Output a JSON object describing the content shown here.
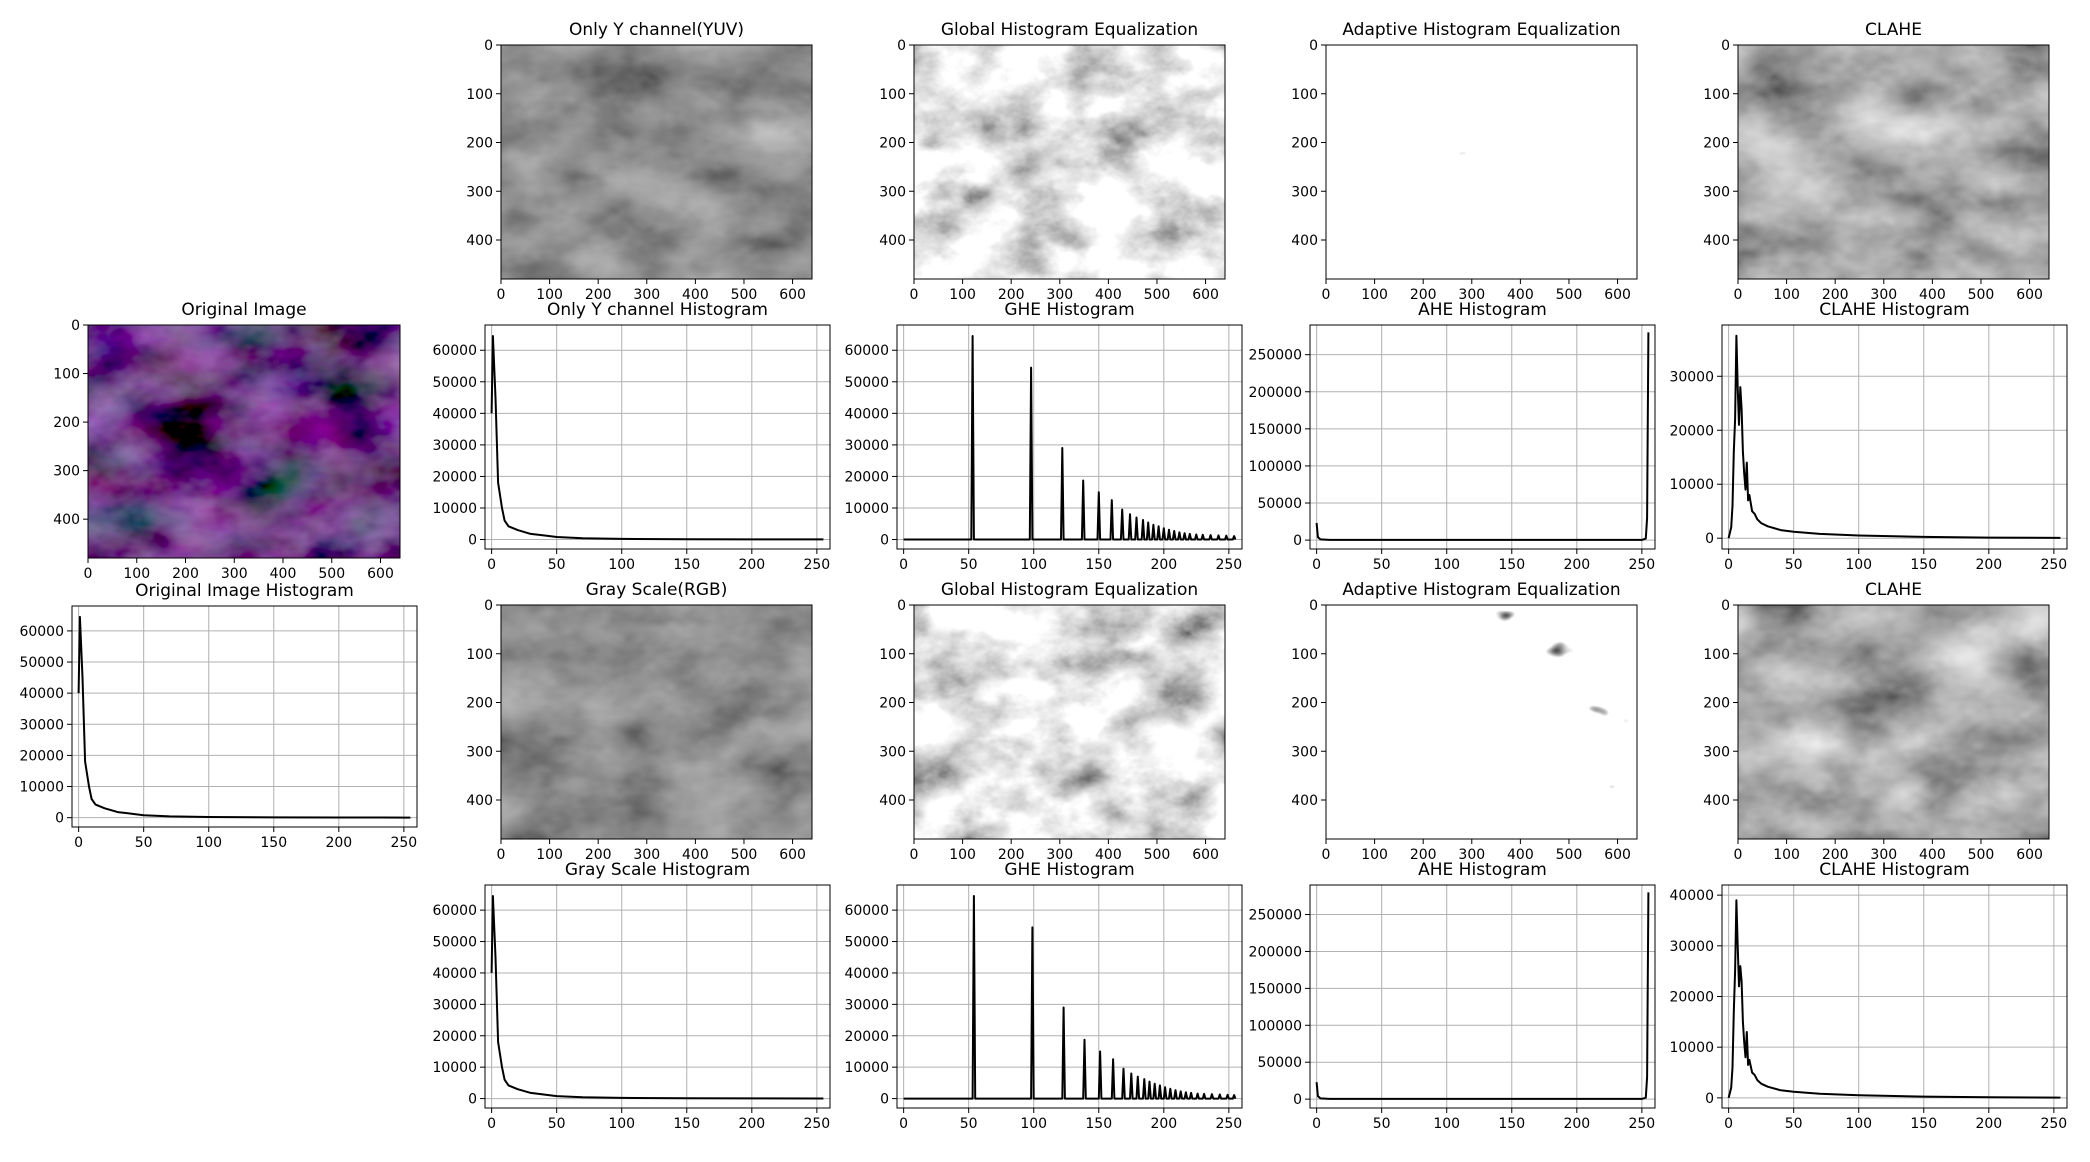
{
  "figure": {
    "background": "#ffffff",
    "line_color": "#000000",
    "grid_color": "#b0b0b0"
  },
  "chart_data": [
    {
      "id": "orig_img",
      "type": "image",
      "title": "Original Image",
      "content": "color",
      "x_ticks": [
        0,
        100,
        200,
        300,
        400,
        500,
        600
      ],
      "y_ticks": [
        0,
        100,
        200,
        300,
        400
      ],
      "xlim": [
        0,
        640
      ],
      "ylim": [
        0,
        480
      ]
    },
    {
      "id": "orig_hist",
      "type": "line",
      "title": "Original Image Histogram",
      "grid": true,
      "xlim": [
        0,
        255
      ],
      "ylim": [
        -3000,
        68000
      ],
      "x_ticks": [
        0,
        50,
        100,
        150,
        200,
        250
      ],
      "y_ticks": [
        0,
        10000,
        20000,
        30000,
        40000,
        50000,
        60000
      ],
      "shape": "decay",
      "points": [
        [
          0,
          40000
        ],
        [
          1,
          64500
        ],
        [
          3,
          45000
        ],
        [
          5,
          18000
        ],
        [
          8,
          10000
        ],
        [
          10,
          6000
        ],
        [
          13,
          4200
        ],
        [
          20,
          3000
        ],
        [
          30,
          1800
        ],
        [
          40,
          1300
        ],
        [
          50,
          800
        ],
        [
          70,
          400
        ],
        [
          100,
          200
        ],
        [
          150,
          100
        ],
        [
          200,
          50
        ],
        [
          255,
          30
        ]
      ]
    },
    {
      "id": "y_img",
      "type": "image",
      "title": "Only Y channel(YUV)",
      "content": "gray",
      "x_ticks": [
        0,
        100,
        200,
        300,
        400,
        500,
        600
      ],
      "y_ticks": [
        0,
        100,
        200,
        300,
        400
      ],
      "xlim": [
        0,
        640
      ],
      "ylim": [
        0,
        480
      ]
    },
    {
      "id": "y_hist",
      "type": "line",
      "title": "Only Y channel Histogram",
      "grid": true,
      "xlim": [
        0,
        255
      ],
      "ylim": [
        -3000,
        68000
      ],
      "x_ticks": [
        0,
        50,
        100,
        150,
        200,
        250
      ],
      "y_ticks": [
        0,
        10000,
        20000,
        30000,
        40000,
        50000,
        60000
      ],
      "shape": "decay",
      "points": [
        [
          0,
          40000
        ],
        [
          1,
          64500
        ],
        [
          3,
          45000
        ],
        [
          5,
          18000
        ],
        [
          8,
          10000
        ],
        [
          10,
          6000
        ],
        [
          13,
          4200
        ],
        [
          20,
          3000
        ],
        [
          30,
          1800
        ],
        [
          40,
          1300
        ],
        [
          50,
          800
        ],
        [
          70,
          400
        ],
        [
          100,
          200
        ],
        [
          150,
          100
        ],
        [
          200,
          50
        ],
        [
          255,
          30
        ]
      ]
    },
    {
      "id": "ghe_img_1",
      "type": "image",
      "title": "Global Histogram Equalization",
      "content": "ghe",
      "x_ticks": [
        0,
        100,
        200,
        300,
        400,
        500,
        600
      ],
      "y_ticks": [
        0,
        100,
        200,
        300,
        400
      ],
      "xlim": [
        0,
        640
      ],
      "ylim": [
        0,
        480
      ]
    },
    {
      "id": "ghe_hist_1",
      "type": "line",
      "title": "GHE Histogram",
      "grid": true,
      "xlim": [
        0,
        255
      ],
      "ylim": [
        -3000,
        68000
      ],
      "x_ticks": [
        0,
        50,
        100,
        150,
        200,
        250
      ],
      "y_ticks": [
        0,
        10000,
        20000,
        30000,
        40000,
        50000,
        60000
      ],
      "shape": "spikes",
      "spikes": [
        [
          53,
          64500
        ],
        [
          98,
          54500
        ],
        [
          122,
          29000
        ],
        [
          138,
          18700
        ],
        [
          150,
          15000
        ],
        [
          160,
          12500
        ],
        [
          168,
          9500
        ],
        [
          174,
          8000
        ],
        [
          179,
          7000
        ],
        [
          184,
          6200
        ],
        [
          188,
          5400
        ],
        [
          192,
          4700
        ],
        [
          196,
          4200
        ],
        [
          200,
          3600
        ],
        [
          204,
          3100
        ],
        [
          208,
          2700
        ],
        [
          212,
          2300
        ],
        [
          216,
          2000
        ],
        [
          220,
          1800
        ],
        [
          225,
          1600
        ],
        [
          230,
          1500
        ],
        [
          236,
          1400
        ],
        [
          242,
          1300
        ],
        [
          248,
          1200
        ],
        [
          254,
          1100
        ]
      ]
    },
    {
      "id": "ahe_img_1",
      "type": "image",
      "title": "Adaptive Histogram Equalization",
      "content": "ahe",
      "x_ticks": [
        0,
        100,
        200,
        300,
        400,
        500,
        600
      ],
      "y_ticks": [
        0,
        100,
        200,
        300,
        400
      ],
      "xlim": [
        0,
        640
      ],
      "ylim": [
        0,
        480
      ]
    },
    {
      "id": "ahe_hist_1",
      "type": "line",
      "title": "AHE Histogram",
      "grid": true,
      "xlim": [
        0,
        255
      ],
      "ylim": [
        -12000,
        290000
      ],
      "x_ticks": [
        0,
        50,
        100,
        150,
        200,
        250
      ],
      "y_ticks": [
        0,
        50000,
        100000,
        150000,
        200000,
        250000
      ],
      "shape": "edge",
      "points": [
        [
          0,
          23000
        ],
        [
          1,
          4000
        ],
        [
          3,
          1000
        ],
        [
          10,
          300
        ],
        [
          250,
          300
        ],
        [
          253,
          2000
        ],
        [
          254,
          30000
        ],
        [
          255,
          280000
        ]
      ]
    },
    {
      "id": "clahe_img_1",
      "type": "image",
      "title": "CLAHE",
      "content": "clahe",
      "x_ticks": [
        0,
        100,
        200,
        300,
        400,
        500,
        600
      ],
      "y_ticks": [
        0,
        100,
        200,
        300,
        400
      ],
      "xlim": [
        0,
        640
      ],
      "ylim": [
        0,
        480
      ]
    },
    {
      "id": "clahe_hist_1",
      "type": "line",
      "title": "CLAHE Histogram",
      "grid": true,
      "xlim": [
        0,
        255
      ],
      "ylim": [
        -2000,
        39500
      ],
      "x_ticks": [
        0,
        50,
        100,
        150,
        200,
        250
      ],
      "y_ticks": [
        0,
        10000,
        20000,
        30000
      ],
      "shape": "clahe",
      "points": [
        [
          0,
          0
        ],
        [
          2,
          2000
        ],
        [
          3,
          6000
        ],
        [
          4,
          16000
        ],
        [
          5,
          22000
        ],
        [
          6,
          37500
        ],
        [
          7,
          28000
        ],
        [
          8,
          21000
        ],
        [
          9,
          28000
        ],
        [
          10,
          24000
        ],
        [
          11,
          16000
        ],
        [
          12,
          12000
        ],
        [
          13,
          9000
        ],
        [
          14,
          14000
        ],
        [
          15,
          7000
        ],
        [
          16,
          8000
        ],
        [
          18,
          5000
        ],
        [
          20,
          4500
        ],
        [
          22,
          3500
        ],
        [
          25,
          2800
        ],
        [
          30,
          2200
        ],
        [
          40,
          1500
        ],
        [
          50,
          1200
        ],
        [
          70,
          800
        ],
        [
          100,
          500
        ],
        [
          150,
          250
        ],
        [
          200,
          120
        ],
        [
          255,
          60
        ]
      ]
    },
    {
      "id": "gray_img",
      "type": "image",
      "title": "Gray Scale(RGB)",
      "content": "gray",
      "x_ticks": [
        0,
        100,
        200,
        300,
        400,
        500,
        600
      ],
      "y_ticks": [
        0,
        100,
        200,
        300,
        400
      ],
      "xlim": [
        0,
        640
      ],
      "ylim": [
        0,
        480
      ]
    },
    {
      "id": "gray_hist",
      "type": "line",
      "title": "Gray Scale Histogram",
      "grid": true,
      "xlim": [
        0,
        255
      ],
      "ylim": [
        -3000,
        68000
      ],
      "x_ticks": [
        0,
        50,
        100,
        150,
        200,
        250
      ],
      "y_ticks": [
        0,
        10000,
        20000,
        30000,
        40000,
        50000,
        60000
      ],
      "shape": "decay",
      "points": [
        [
          0,
          40000
        ],
        [
          1,
          64500
        ],
        [
          3,
          45000
        ],
        [
          5,
          18000
        ],
        [
          8,
          10000
        ],
        [
          10,
          6000
        ],
        [
          13,
          4200
        ],
        [
          20,
          3000
        ],
        [
          30,
          1800
        ],
        [
          40,
          1300
        ],
        [
          50,
          800
        ],
        [
          70,
          400
        ],
        [
          100,
          200
        ],
        [
          150,
          100
        ],
        [
          200,
          50
        ],
        [
          255,
          30
        ]
      ]
    },
    {
      "id": "ghe_img_2",
      "type": "image",
      "title": "Global Histogram Equalization",
      "content": "ghe",
      "x_ticks": [
        0,
        100,
        200,
        300,
        400,
        500,
        600
      ],
      "y_ticks": [
        0,
        100,
        200,
        300,
        400
      ],
      "xlim": [
        0,
        640
      ],
      "ylim": [
        0,
        480
      ]
    },
    {
      "id": "ghe_hist_2",
      "type": "line",
      "title": "GHE Histogram",
      "grid": true,
      "xlim": [
        0,
        255
      ],
      "ylim": [
        -3000,
        68000
      ],
      "x_ticks": [
        0,
        50,
        100,
        150,
        200,
        250
      ],
      "y_ticks": [
        0,
        10000,
        20000,
        30000,
        40000,
        50000,
        60000
      ],
      "shape": "spikes",
      "spikes": [
        [
          54,
          64500
        ],
        [
          99,
          54500
        ],
        [
          123,
          29000
        ],
        [
          139,
          18700
        ],
        [
          151,
          15000
        ],
        [
          161,
          12500
        ],
        [
          169,
          9500
        ],
        [
          175,
          8000
        ],
        [
          180,
          7000
        ],
        [
          185,
          6200
        ],
        [
          189,
          5400
        ],
        [
          193,
          4700
        ],
        [
          197,
          4200
        ],
        [
          201,
          3600
        ],
        [
          205,
          3100
        ],
        [
          209,
          2700
        ],
        [
          213,
          2300
        ],
        [
          217,
          2000
        ],
        [
          221,
          1800
        ],
        [
          226,
          1600
        ],
        [
          231,
          1500
        ],
        [
          237,
          1400
        ],
        [
          243,
          1300
        ],
        [
          249,
          1200
        ],
        [
          254,
          1100
        ]
      ]
    },
    {
      "id": "ahe_img_2",
      "type": "image",
      "title": "Adaptive Histogram Equalization",
      "content": "ahe",
      "x_ticks": [
        0,
        100,
        200,
        300,
        400,
        500,
        600
      ],
      "y_ticks": [
        0,
        100,
        200,
        300,
        400
      ],
      "xlim": [
        0,
        640
      ],
      "ylim": [
        0,
        480
      ]
    },
    {
      "id": "ahe_hist_2",
      "type": "line",
      "title": "AHE Histogram",
      "grid": true,
      "xlim": [
        0,
        255
      ],
      "ylim": [
        -12000,
        290000
      ],
      "x_ticks": [
        0,
        50,
        100,
        150,
        200,
        250
      ],
      "y_ticks": [
        0,
        50000,
        100000,
        150000,
        200000,
        250000
      ],
      "shape": "edge",
      "points": [
        [
          0,
          23000
        ],
        [
          1,
          4000
        ],
        [
          3,
          1000
        ],
        [
          10,
          300
        ],
        [
          250,
          300
        ],
        [
          253,
          2000
        ],
        [
          254,
          30000
        ],
        [
          255,
          280000
        ]
      ]
    },
    {
      "id": "clahe_img_2",
      "type": "image",
      "title": "CLAHE",
      "content": "clahe",
      "x_ticks": [
        0,
        100,
        200,
        300,
        400,
        500,
        600
      ],
      "y_ticks": [
        0,
        100,
        200,
        300,
        400
      ],
      "xlim": [
        0,
        640
      ],
      "ylim": [
        0,
        480
      ]
    },
    {
      "id": "clahe_hist_2",
      "type": "line",
      "title": "CLAHE Histogram",
      "grid": true,
      "xlim": [
        0,
        255
      ],
      "ylim": [
        -2000,
        42000
      ],
      "x_ticks": [
        0,
        50,
        100,
        150,
        200,
        250
      ],
      "y_ticks": [
        0,
        10000,
        20000,
        30000,
        40000
      ],
      "shape": "clahe",
      "points": [
        [
          0,
          0
        ],
        [
          2,
          2000
        ],
        [
          3,
          6000
        ],
        [
          4,
          17000
        ],
        [
          5,
          25000
        ],
        [
          6,
          39000
        ],
        [
          7,
          30000
        ],
        [
          8,
          22000
        ],
        [
          9,
          26000
        ],
        [
          10,
          23000
        ],
        [
          11,
          15000
        ],
        [
          12,
          11000
        ],
        [
          13,
          8000
        ],
        [
          14,
          13000
        ],
        [
          15,
          6500
        ],
        [
          16,
          7500
        ],
        [
          18,
          5000
        ],
        [
          20,
          4500
        ],
        [
          22,
          3500
        ],
        [
          25,
          2800
        ],
        [
          30,
          2200
        ],
        [
          40,
          1500
        ],
        [
          50,
          1200
        ],
        [
          70,
          800
        ],
        [
          100,
          500
        ],
        [
          150,
          250
        ],
        [
          200,
          120
        ],
        [
          255,
          60
        ]
      ]
    }
  ]
}
